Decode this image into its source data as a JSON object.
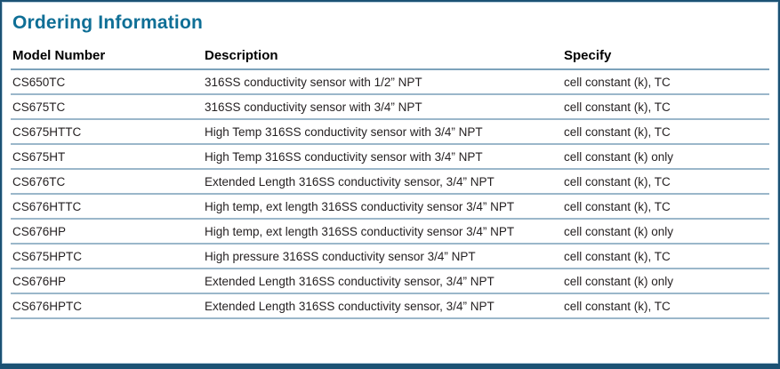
{
  "panel": {
    "title": "Ordering Information"
  },
  "theme": {
    "title_color": "#0f6f96",
    "frame_border_color": "#1c5274",
    "row_separator_color": "#9bb7ca",
    "header_rule_color": "#7da2bb",
    "text_color": "#231f20",
    "background_color": "#ffffff"
  },
  "table": {
    "columns": [
      "Model Number",
      "Description",
      "Specify"
    ],
    "rows": [
      {
        "model": "CS650TC",
        "description": "316SS conductivity sensor with 1/2” NPT",
        "specify": "cell constant (k), TC"
      },
      {
        "model": "CS675TC",
        "description": "316SS conductivity sensor with 3/4” NPT",
        "specify": "cell constant (k), TC"
      },
      {
        "model": "CS675HTTC",
        "description": "High Temp 316SS conductivity sensor with 3/4” NPT",
        "specify": "cell constant (k), TC"
      },
      {
        "model": "CS675HT",
        "description": "High Temp 316SS conductivity sensor with 3/4” NPT",
        "specify": "cell constant (k) only"
      },
      {
        "model": "CS676TC",
        "description": "Extended Length 316SS conductivity sensor, 3/4” NPT",
        "specify": "cell constant (k), TC"
      },
      {
        "model": "CS676HTTC",
        "description": "High temp, ext length 316SS conductivity sensor 3/4” NPT",
        "specify": "cell constant (k), TC"
      },
      {
        "model": "CS676HP",
        "description": "High temp, ext length 316SS conductivity sensor 3/4” NPT",
        "specify": "cell constant (k) only"
      },
      {
        "model": "CS675HPTC",
        "description": "High pressure 316SS conductivity sensor 3/4” NPT",
        "specify": "cell constant (k), TC"
      },
      {
        "model": "CS676HP",
        "description": "Extended Length 316SS conductivity sensor, 3/4” NPT",
        "specify": "cell constant (k) only"
      },
      {
        "model": "CS676HPTC",
        "description": "Extended Length 316SS conductivity sensor, 3/4” NPT",
        "specify": "cell constant (k), TC"
      }
    ]
  }
}
